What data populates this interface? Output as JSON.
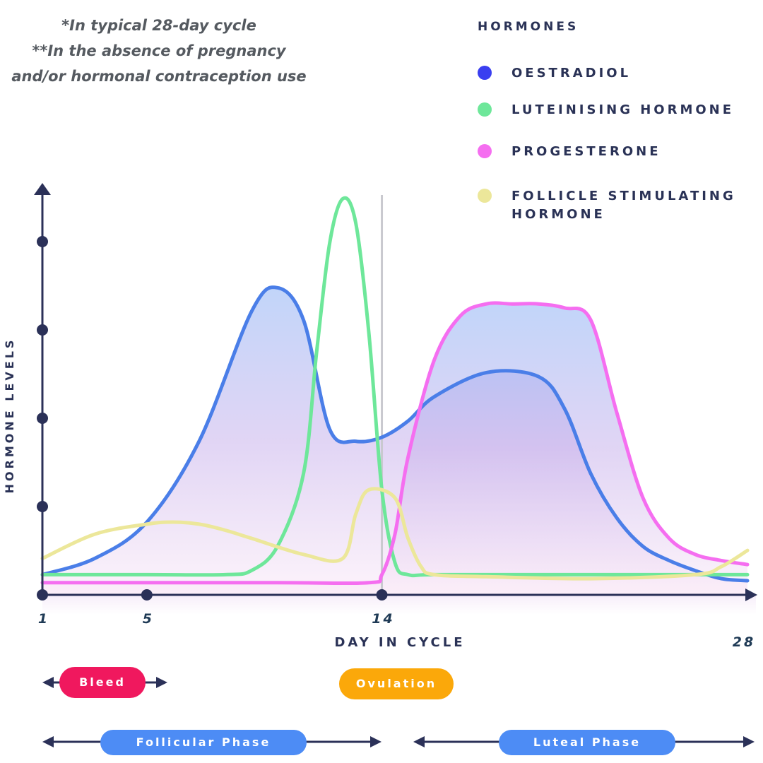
{
  "notes": [
    "*In typical 28-day cycle",
    "**In the absence of pregnancy",
    "and/or hormonal contraception use"
  ],
  "legend": {
    "title": "HORMONES",
    "items": [
      {
        "label": "OESTRADIOL",
        "color": "#3a3ff0"
      },
      {
        "label": "LUTEINISING HORMONE",
        "color": "#6ee79a"
      },
      {
        "label": "PROGESTERONE",
        "color": "#f56ef0"
      },
      {
        "label": "FOLLICLE STIMULATING HORMONE",
        "color": "#ece79a"
      }
    ]
  },
  "phases": {
    "bleed": "Bleed",
    "ovulation": "Ovulation",
    "follicular": "Follicular Phase",
    "luteal": "Luteal Phase"
  },
  "colors": {
    "axis": "#2b3158",
    "bleed": "#f0185e",
    "ovulation": "#fba80a",
    "phase": "#4d8cf5"
  },
  "chart_data": {
    "type": "line",
    "title": "",
    "xlabel": "DAY IN CYCLE",
    "ylabel": "HORMONE LEVELS",
    "xlim": [
      1,
      28
    ],
    "ylim": [
      0,
      10
    ],
    "x_ticks": [
      1,
      5,
      14,
      28
    ],
    "y_tick_count": 4,
    "ovulation_line_x": 14,
    "series": [
      {
        "name": "OESTRADIOL",
        "color": "#4a7ee8",
        "fill": true,
        "x": [
          1,
          3,
          5,
          7,
          9,
          10,
          11,
          12,
          13,
          14,
          15,
          16,
          18,
          20,
          21,
          22,
          23,
          24,
          25,
          26,
          27,
          28
        ],
        "y": [
          0.5,
          0.9,
          1.8,
          3.8,
          7.0,
          7.6,
          6.8,
          4.1,
          3.8,
          3.9,
          4.3,
          4.9,
          5.5,
          5.4,
          4.6,
          3.0,
          1.9,
          1.2,
          0.85,
          0.6,
          0.4,
          0.35
        ]
      },
      {
        "name": "LUTEINISING HORMONE",
        "color": "#6ee79a",
        "fill": false,
        "x": [
          1,
          5,
          8,
          9,
          10,
          11,
          11.5,
          12,
          12.5,
          13,
          13.5,
          14,
          14.5,
          15,
          16,
          20,
          28
        ],
        "y": [
          0.5,
          0.5,
          0.5,
          0.6,
          1.2,
          3.0,
          6.0,
          8.7,
          9.8,
          9.2,
          6.5,
          2.6,
          0.8,
          0.5,
          0.5,
          0.5,
          0.5
        ]
      },
      {
        "name": "PROGESTERONE",
        "color": "#f56ef0",
        "fill": true,
        "x": [
          1,
          10,
          13.5,
          14,
          14.5,
          15,
          16,
          17,
          18,
          19,
          20,
          21,
          22,
          23,
          24,
          25,
          26,
          27,
          28
        ],
        "y": [
          0.3,
          0.3,
          0.3,
          0.5,
          1.5,
          3.4,
          5.8,
          6.9,
          7.2,
          7.2,
          7.2,
          7.1,
          6.8,
          4.5,
          2.4,
          1.4,
          1.0,
          0.85,
          0.75
        ]
      },
      {
        "name": "FOLLICLE STIMULATING HORMONE",
        "color": "#ece79a",
        "fill": false,
        "x": [
          1,
          3,
          5,
          6,
          7,
          8,
          9,
          11,
          12.5,
          13,
          13.5,
          14.5,
          15,
          15.5,
          16,
          18,
          22,
          26,
          27,
          28
        ],
        "y": [
          0.9,
          1.5,
          1.75,
          1.8,
          1.75,
          1.6,
          1.4,
          1.0,
          0.9,
          2.0,
          2.6,
          2.4,
          1.4,
          0.7,
          0.5,
          0.45,
          0.4,
          0.5,
          0.7,
          1.1
        ]
      }
    ]
  }
}
